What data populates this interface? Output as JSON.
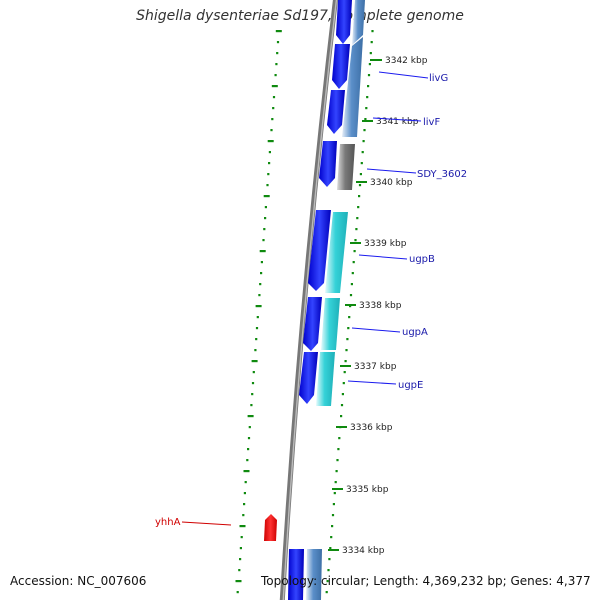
{
  "title": "Shigella dysenteriae Sd197, complete genome",
  "footer": {
    "accession": "Accession: NC_007606",
    "topology": "Topology: circular; Length: 4,369,232 bp; Genes: 4,377"
  },
  "colors": {
    "forward_cds": "#1a1aee",
    "reverse_steelblue": "#4f86c0",
    "reverse_cyan": "#30c8d0",
    "reverse_gray": "#6e6e6e",
    "pseudo_red": "#ee1111",
    "gc_skew": "#0f8a0f",
    "label_blue": "#1a1aaa",
    "label_red": "#d00000"
  },
  "kbp_ticks": [
    "3342 kbp",
    "3341 kbp",
    "3340 kbp",
    "3339 kbp",
    "3338 kbp",
    "3337 kbp",
    "3336 kbp",
    "3335 kbp",
    "3334 kbp"
  ],
  "gene_labels": [
    "livG",
    "livF",
    "SDY_3602",
    "ugpB",
    "ugpA",
    "ugpE",
    "yhhA"
  ]
}
